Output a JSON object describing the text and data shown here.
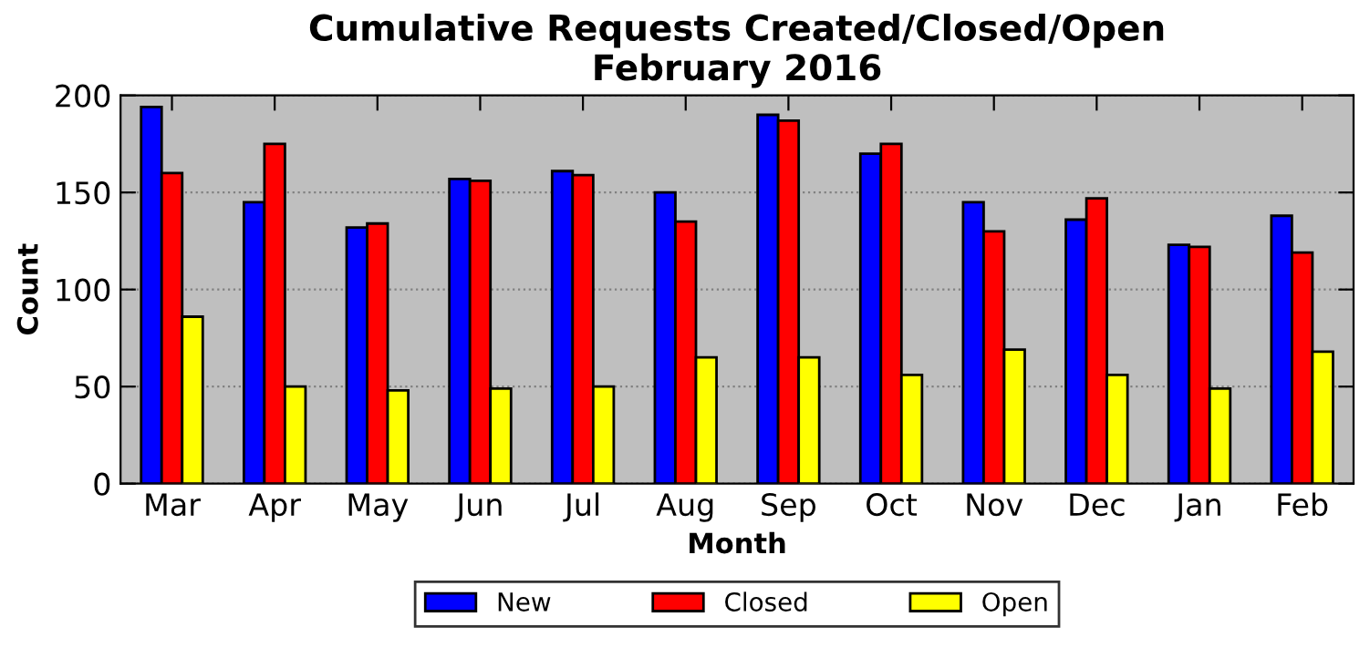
{
  "chart_data": {
    "type": "bar",
    "title": "Cumulative Requests Created/Closed/Open\nFebruary 2016",
    "xlabel": "Month",
    "ylabel": "Count",
    "categories": [
      "Mar",
      "Apr",
      "May",
      "Jun",
      "Jul",
      "Aug",
      "Sep",
      "Oct",
      "Nov",
      "Dec",
      "Jan",
      "Feb"
    ],
    "series": [
      {
        "name": "New",
        "color": "#0000ff",
        "values": [
          194,
          145,
          132,
          157,
          161,
          150,
          190,
          170,
          145,
          136,
          123,
          138
        ]
      },
      {
        "name": "Closed",
        "color": "#ff0000",
        "values": [
          160,
          175,
          134,
          156,
          159,
          135,
          187,
          175,
          130,
          147,
          122,
          119
        ]
      },
      {
        "name": "Open",
        "color": "#ffff00",
        "values": [
          86,
          50,
          48,
          49,
          50,
          65,
          65,
          56,
          69,
          56,
          49,
          68
        ]
      }
    ],
    "ylim": [
      0,
      200
    ],
    "yticks": [
      0,
      50,
      100,
      150,
      200
    ],
    "grid": "y",
    "legend": "bottom"
  }
}
